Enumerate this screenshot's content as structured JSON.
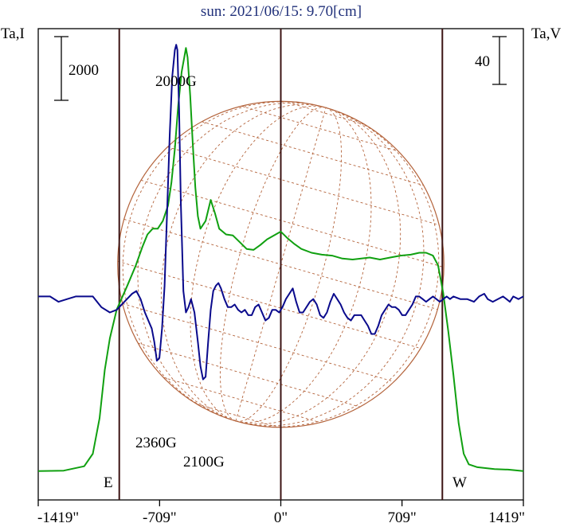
{
  "chart_data": {
    "type": "line",
    "title": "sun: 2021/06/15: 9.70[cm]",
    "left_axis_label": "Ta,I",
    "right_axis_label": "Ta,V",
    "left_scale_bar_value": 2000,
    "right_scale_bar_value": 40,
    "x_unit": "arcsec",
    "xlim": [
      -1419,
      1419
    ],
    "x_tick_labels": [
      "-1419\"",
      "-709\"",
      "0\"",
      "709\"",
      "1419\""
    ],
    "x_ticks": [
      -1419,
      -709,
      0,
      709,
      1419
    ],
    "limb_labels": {
      "east": "E",
      "west": "W"
    },
    "limb_x": [
      -945,
      945
    ],
    "colors": {
      "I": "#10a010",
      "V": "#0a0a8c",
      "limb_lines": "#3c1414",
      "disk_grid": "#b4643c",
      "title": "#20307a"
    },
    "annotations": [
      {
        "text": "2000G",
        "x": -540
      },
      {
        "text": "2360G",
        "x": -709
      },
      {
        "text": "2100G",
        "x": -420
      }
    ],
    "series": [
      {
        "name": "I",
        "axis": "left",
        "ylim": [
          -300,
          4600
        ],
        "points": [
          [
            -1419,
            0
          ],
          [
            -1270,
            5
          ],
          [
            -1150,
            50
          ],
          [
            -1100,
            180
          ],
          [
            -1060,
            550
          ],
          [
            -1030,
            1050
          ],
          [
            -1000,
            1380
          ],
          [
            -960,
            1680
          ],
          [
            -900,
            1920
          ],
          [
            -850,
            2130
          ],
          [
            -810,
            2330
          ],
          [
            -780,
            2460
          ],
          [
            -750,
            2520
          ],
          [
            -720,
            2520
          ],
          [
            -690,
            2600
          ],
          [
            -660,
            2760
          ],
          [
            -640,
            3000
          ],
          [
            -620,
            3350
          ],
          [
            -600,
            3800
          ],
          [
            -580,
            4150
          ],
          [
            -565,
            4300
          ],
          [
            -555,
            4400
          ],
          [
            -545,
            4300
          ],
          [
            -530,
            3900
          ],
          [
            -515,
            3400
          ],
          [
            -500,
            2950
          ],
          [
            -485,
            2650
          ],
          [
            -470,
            2520
          ],
          [
            -440,
            2600
          ],
          [
            -410,
            2820
          ],
          [
            -385,
            2680
          ],
          [
            -360,
            2520
          ],
          [
            -320,
            2460
          ],
          [
            -280,
            2450
          ],
          [
            -240,
            2380
          ],
          [
            -200,
            2310
          ],
          [
            -160,
            2300
          ],
          [
            -120,
            2350
          ],
          [
            -80,
            2410
          ],
          [
            -30,
            2460
          ],
          [
            0,
            2490
          ],
          [
            40,
            2420
          ],
          [
            80,
            2360
          ],
          [
            120,
            2310
          ],
          [
            180,
            2270
          ],
          [
            240,
            2250
          ],
          [
            300,
            2240
          ],
          [
            360,
            2210
          ],
          [
            420,
            2200
          ],
          [
            470,
            2210
          ],
          [
            520,
            2220
          ],
          [
            580,
            2200
          ],
          [
            640,
            2220
          ],
          [
            700,
            2240
          ],
          [
            760,
            2250
          ],
          [
            810,
            2270
          ],
          [
            850,
            2270
          ],
          [
            890,
            2240
          ],
          [
            920,
            2140
          ],
          [
            950,
            1850
          ],
          [
            980,
            1450
          ],
          [
            1010,
            1000
          ],
          [
            1040,
            500
          ],
          [
            1070,
            180
          ],
          [
            1100,
            70
          ],
          [
            1150,
            40
          ],
          [
            1250,
            20
          ],
          [
            1330,
            15
          ],
          [
            1419,
            0
          ]
        ]
      },
      {
        "name": "V",
        "axis": "right",
        "ylim": [
          -116,
          60
        ],
        "points": [
          [
            -1419,
            -40
          ],
          [
            -1350,
            -40
          ],
          [
            -1300,
            -42
          ],
          [
            -1250,
            -41
          ],
          [
            -1200,
            -40
          ],
          [
            -1150,
            -40
          ],
          [
            -1100,
            -40
          ],
          [
            -1050,
            -44
          ],
          [
            -1000,
            -46
          ],
          [
            -960,
            -45
          ],
          [
            -930,
            -43
          ],
          [
            -900,
            -41
          ],
          [
            -870,
            -39
          ],
          [
            -845,
            -38
          ],
          [
            -820,
            -41
          ],
          [
            -795,
            -46
          ],
          [
            -775,
            -49
          ],
          [
            -755,
            -52
          ],
          [
            -740,
            -57
          ],
          [
            -725,
            -64
          ],
          [
            -710,
            -63
          ],
          [
            -695,
            -52
          ],
          [
            -680,
            -36
          ],
          [
            -665,
            -8
          ],
          [
            -650,
            20
          ],
          [
            -635,
            42
          ],
          [
            -620,
            52
          ],
          [
            -612,
            54
          ],
          [
            -605,
            52
          ],
          [
            -595,
            30
          ],
          [
            -585,
            -5
          ],
          [
            -570,
            -38
          ],
          [
            -555,
            -46
          ],
          [
            -540,
            -44
          ],
          [
            -525,
            -41
          ],
          [
            -505,
            -46
          ],
          [
            -485,
            -57
          ],
          [
            -470,
            -66
          ],
          [
            -455,
            -71
          ],
          [
            -440,
            -70
          ],
          [
            -425,
            -57
          ],
          [
            -410,
            -45
          ],
          [
            -395,
            -38
          ],
          [
            -380,
            -36
          ],
          [
            -365,
            -35
          ],
          [
            -350,
            -37
          ],
          [
            -330,
            -41
          ],
          [
            -310,
            -44
          ],
          [
            -290,
            -44
          ],
          [
            -270,
            -43
          ],
          [
            -250,
            -45
          ],
          [
            -230,
            -46
          ],
          [
            -210,
            -45
          ],
          [
            -190,
            -47
          ],
          [
            -170,
            -47
          ],
          [
            -150,
            -44
          ],
          [
            -130,
            -43
          ],
          [
            -110,
            -46
          ],
          [
            -90,
            -49
          ],
          [
            -70,
            -48
          ],
          [
            -50,
            -45
          ],
          [
            -30,
            -45
          ],
          [
            -10,
            -46
          ],
          [
            10,
            -44
          ],
          [
            30,
            -41
          ],
          [
            50,
            -39
          ],
          [
            70,
            -37
          ],
          [
            90,
            -42
          ],
          [
            110,
            -46
          ],
          [
            130,
            -46
          ],
          [
            150,
            -44
          ],
          [
            170,
            -42
          ],
          [
            190,
            -41
          ],
          [
            210,
            -43
          ],
          [
            230,
            -47
          ],
          [
            250,
            -48
          ],
          [
            270,
            -46
          ],
          [
            290,
            -42
          ],
          [
            310,
            -39
          ],
          [
            330,
            -41
          ],
          [
            350,
            -43
          ],
          [
            370,
            -46
          ],
          [
            390,
            -48
          ],
          [
            410,
            -49
          ],
          [
            430,
            -47
          ],
          [
            450,
            -47
          ],
          [
            470,
            -47
          ],
          [
            490,
            -49
          ],
          [
            510,
            -51
          ],
          [
            530,
            -54
          ],
          [
            550,
            -54
          ],
          [
            570,
            -51
          ],
          [
            590,
            -47
          ],
          [
            610,
            -45
          ],
          [
            630,
            -43
          ],
          [
            650,
            -44
          ],
          [
            670,
            -44
          ],
          [
            690,
            -45
          ],
          [
            710,
            -47
          ],
          [
            730,
            -47
          ],
          [
            750,
            -45
          ],
          [
            770,
            -43
          ],
          [
            790,
            -40
          ],
          [
            810,
            -40
          ],
          [
            830,
            -41
          ],
          [
            850,
            -42
          ],
          [
            870,
            -41
          ],
          [
            890,
            -40
          ],
          [
            910,
            -41
          ],
          [
            930,
            -42
          ],
          [
            950,
            -41
          ],
          [
            970,
            -40
          ],
          [
            990,
            -41
          ],
          [
            1010,
            -40
          ],
          [
            1050,
            -41
          ],
          [
            1090,
            -41
          ],
          [
            1130,
            -42
          ],
          [
            1160,
            -40
          ],
          [
            1190,
            -39
          ],
          [
            1210,
            -41
          ],
          [
            1240,
            -42
          ],
          [
            1270,
            -41
          ],
          [
            1300,
            -40
          ],
          [
            1320,
            -41
          ],
          [
            1340,
            -42
          ],
          [
            1360,
            -40
          ],
          [
            1390,
            -41
          ],
          [
            1419,
            -40
          ]
        ]
      }
    ],
    "grid": false
  }
}
